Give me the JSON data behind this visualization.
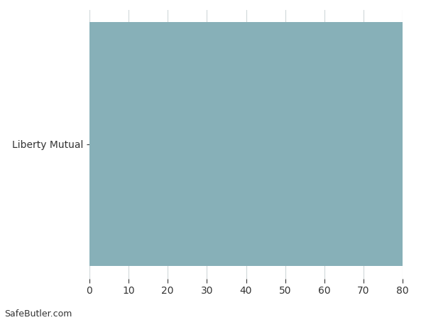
{
  "categories": [
    "Liberty Mutual"
  ],
  "values": [
    80
  ],
  "bar_color": "#87b0b8",
  "xlim": [
    0,
    80
  ],
  "xticks": [
    0,
    10,
    20,
    30,
    40,
    50,
    60,
    70,
    80
  ],
  "background_color": "#ffffff",
  "grid_color": "#d0d8da",
  "tick_color": "#333333",
  "label_fontsize": 10,
  "tick_fontsize": 10,
  "watermark": "SafeButler.com",
  "watermark_fontsize": 9
}
